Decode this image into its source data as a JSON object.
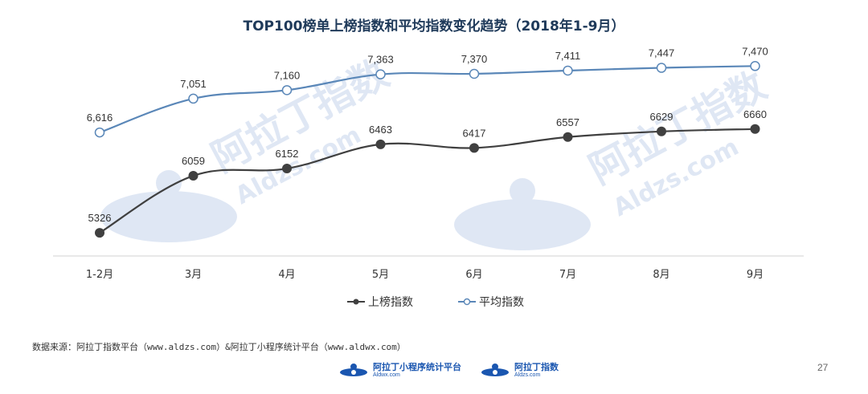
{
  "title": "TOP100榜单上榜指数和平均指数变化趋势（2018年1-9月）",
  "colors": {
    "series_1": "#404040",
    "series_2": "#5a87b8",
    "watermark": "#dfe7f4",
    "axis": "#d0d0d0",
    "title": "#1f3a5a"
  },
  "chart_data": {
    "type": "line",
    "title": "TOP100榜单上榜指数和平均指数变化趋势（2018年1-9月）",
    "categories": [
      "1-2月",
      "3月",
      "4月",
      "5月",
      "6月",
      "7月",
      "8月",
      "9月"
    ],
    "series": [
      {
        "name": "上榜指数",
        "values": [
          5326,
          6059,
          6152,
          6463,
          6417,
          6557,
          6629,
          6660
        ],
        "labels": [
          "5326",
          "6059",
          "6152",
          "6463",
          "6417",
          "6557",
          "6629",
          "6660"
        ],
        "marker": "filled-circle"
      },
      {
        "name": "平均指数",
        "values": [
          6616,
          7051,
          7160,
          7363,
          7370,
          7411,
          7447,
          7470
        ],
        "labels": [
          "6,616",
          "7,051",
          "7,160",
          "7,363",
          "7,370",
          "7,411",
          "7,447",
          "7,470"
        ],
        "marker": "hollow-circle"
      }
    ],
    "ylim": [
      5100,
      7700
    ],
    "y_axis_visible": false,
    "grid": false,
    "legend_position": "bottom",
    "smooth": true
  },
  "watermark": {
    "text_cn": "阿拉丁指数",
    "text_site": "Aldzs.com"
  },
  "footer": {
    "source_note": "数据来源：阿拉丁指数平台（www.aldzs.com）&阿拉丁小程序统计平台（www.aldwx.com）",
    "logo_1": {
      "name": "阿拉丁小程序统计平台",
      "site": "Aldwx.com"
    },
    "logo_2": {
      "name": "阿拉丁指数",
      "site": "Aldzs.com"
    },
    "page_number": "27"
  }
}
